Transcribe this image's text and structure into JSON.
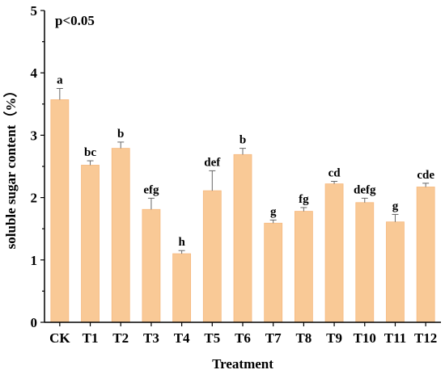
{
  "chart_data": {
    "type": "bar",
    "annotation": "p<0.05",
    "xlabel": "Treatment",
    "ylabel": "soluble sugar content（%）",
    "ylim": [
      0,
      5
    ],
    "yticks": [
      0,
      1,
      2,
      3,
      4,
      5
    ],
    "grid": false,
    "legend": "none",
    "bar_color": "#f9c996",
    "bar_edge_color": "#f6b97f",
    "categories": [
      "CK",
      "T1",
      "T2",
      "T3",
      "T4",
      "T5",
      "T6",
      "T7",
      "T8",
      "T9",
      "T10",
      "T11",
      "T12"
    ],
    "values": [
      3.57,
      2.52,
      2.79,
      1.81,
      1.1,
      2.11,
      2.69,
      1.59,
      1.78,
      2.22,
      1.92,
      1.61,
      2.17
    ],
    "errors": [
      0.18,
      0.07,
      0.1,
      0.18,
      0.05,
      0.32,
      0.1,
      0.05,
      0.06,
      0.04,
      0.07,
      0.12,
      0.06
    ],
    "significance_labels": [
      "a",
      "bc",
      "b",
      "efg",
      "h",
      "def",
      "b",
      "g",
      "fg",
      "cd",
      "defg",
      "g",
      "cde"
    ]
  }
}
